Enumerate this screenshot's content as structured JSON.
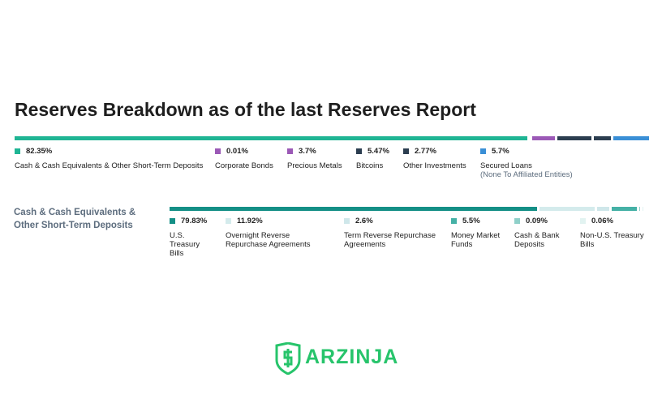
{
  "chart_data": [
    {
      "type": "stacked-bar",
      "title": "Reserves Breakdown as of the last Reserves Report",
      "categories": [
        "Cash & Cash Equivalents & Other Short-Term Deposits",
        "Corporate Bonds",
        "Precious Metals",
        "Bitcoins",
        "Other Investments",
        "Secured Loans"
      ],
      "category_notes": [
        null,
        null,
        null,
        null,
        null,
        "(None To Affiliated Entities)"
      ],
      "values": [
        82.35,
        0.01,
        3.7,
        5.47,
        2.77,
        5.7
      ],
      "value_labels": [
        "82.35%",
        "0.01%",
        "3.7%",
        "5.47%",
        "2.77%",
        "5.7%"
      ],
      "colors": [
        "#1fb594",
        "#9b59b6",
        "#9b59b6",
        "#2c3e50",
        "#2c3e50",
        "#3a8fd6"
      ]
    },
    {
      "type": "stacked-bar",
      "title": "Cash & Cash Equivalents & Other Short-Term Deposits",
      "categories": [
        "U.S. Treasury Bills",
        "Overnight Reverse Repurchase Agreements",
        "Term Reverse Repurchase Agreements",
        "Money Market Funds",
        "Cash & Bank Deposits",
        "Non-U.S. Treasury Bills"
      ],
      "values": [
        79.83,
        11.92,
        2.6,
        5.5,
        0.09,
        0.06
      ],
      "value_labels": [
        "79.83%",
        "11.92%",
        "2.6%",
        "5.5%",
        "0.09%",
        "0.06%"
      ],
      "colors": [
        "#148f86",
        "#d4ebec",
        "#cfe7ea",
        "#45b1a6",
        "#8fd0c9",
        "#e2f3f1"
      ]
    }
  ],
  "watermark": "ARZINJA"
}
